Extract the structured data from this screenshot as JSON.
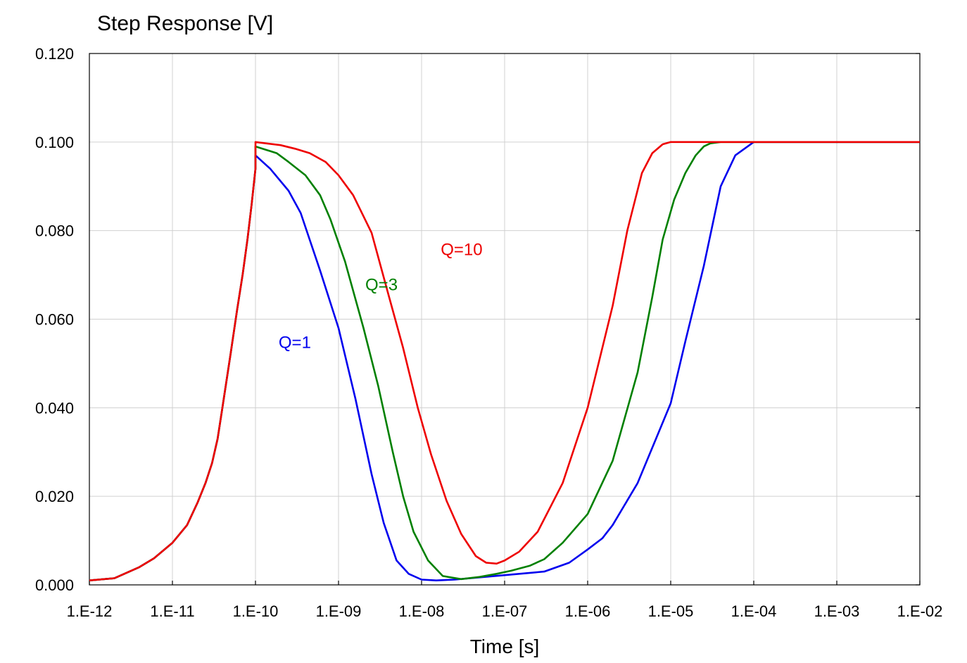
{
  "chart_data": {
    "type": "line",
    "title": "Step Response [V]",
    "xlabel": "Time [s]",
    "ylabel": "",
    "x_scale": "log",
    "xlim": [
      1e-12,
      0.01
    ],
    "ylim": [
      0,
      0.12
    ],
    "grid": true,
    "x_ticks": [
      1e-12,
      1e-11,
      1e-10,
      1e-09,
      1e-08,
      1e-07,
      1e-06,
      1e-05,
      0.0001,
      0.001,
      0.01
    ],
    "x_tick_labels": [
      "1.E-12",
      "1.E-11",
      "1.E-10",
      "1.E-09",
      "1.E-08",
      "1.E-07",
      "1.E-06",
      "1.E-05",
      "1.E-04",
      "1.E-03",
      "1.E-02"
    ],
    "y_ticks": [
      0,
      0.02,
      0.04,
      0.06,
      0.08,
      0.1,
      0.12
    ],
    "y_tick_labels": [
      "0.000",
      "0.020",
      "0.040",
      "0.060",
      "0.080",
      "0.100",
      "0.120"
    ],
    "rise": {
      "x": [
        1e-12,
        2e-12,
        4e-12,
        6e-12,
        1e-11,
        1.5e-11,
        2e-11,
        2.5e-11,
        3e-11,
        3.5e-11,
        4e-11,
        5e-11,
        6e-11,
        7e-11,
        8e-11,
        9e-11,
        1e-10
      ],
      "values": [
        0.001,
        0.0015,
        0.004,
        0.006,
        0.0095,
        0.0135,
        0.0185,
        0.023,
        0.0275,
        0.033,
        0.04,
        0.052,
        0.062,
        0.07,
        0.078,
        0.086,
        0.094
      ]
    },
    "series": [
      {
        "name": "Q=1",
        "color": "#0000ee",
        "x": [
          1e-10,
          1.5e-10,
          2.5e-10,
          3.5e-10,
          6e-10,
          1e-09,
          1.6e-09,
          2.5e-09,
          3.5e-09,
          5e-09,
          7e-09,
          1e-08,
          1.5e-08,
          2.5e-08,
          5e-08,
          1e-07,
          3e-07,
          6e-07,
          1e-06,
          1.5e-06,
          2e-06,
          4e-06,
          7e-06,
          1e-05,
          1.5e-05,
          2.5e-05,
          4e-05,
          6e-05,
          0.0001,
          0.001,
          0.01
        ],
        "values": [
          0.097,
          0.094,
          0.089,
          0.084,
          0.071,
          0.058,
          0.042,
          0.025,
          0.014,
          0.0055,
          0.0025,
          0.0012,
          0.001,
          0.0012,
          0.0017,
          0.0022,
          0.003,
          0.005,
          0.008,
          0.0105,
          0.0135,
          0.023,
          0.034,
          0.041,
          0.055,
          0.072,
          0.09,
          0.097,
          0.1,
          0.1,
          0.1
        ]
      },
      {
        "name": "Q=3",
        "color": "#008000",
        "x": [
          1e-10,
          1.8e-10,
          2.5e-10,
          4e-10,
          6e-10,
          8e-10,
          1.2e-09,
          2e-09,
          3e-09,
          4.5e-09,
          6e-09,
          8e-09,
          1.2e-08,
          1.8e-08,
          3e-08,
          5e-08,
          8e-08,
          1.2e-07,
          2e-07,
          3e-07,
          5e-07,
          1e-06,
          2e-06,
          4e-06,
          6e-06,
          8e-06,
          1.1e-05,
          1.5e-05,
          2e-05,
          2.5e-05,
          3e-05,
          4e-05,
          0.0001,
          0.01
        ],
        "values": [
          0.099,
          0.0975,
          0.0955,
          0.0925,
          0.088,
          0.0825,
          0.073,
          0.058,
          0.045,
          0.03,
          0.02,
          0.012,
          0.0055,
          0.002,
          0.0013,
          0.0018,
          0.0025,
          0.0032,
          0.0043,
          0.0058,
          0.0095,
          0.016,
          0.028,
          0.048,
          0.065,
          0.078,
          0.087,
          0.093,
          0.097,
          0.099,
          0.0997,
          0.1,
          0.1,
          0.1
        ]
      },
      {
        "name": "Q=10",
        "color": "#ee0000",
        "x": [
          1e-10,
          2e-10,
          3e-10,
          4.5e-10,
          7e-10,
          1e-09,
          1.5e-09,
          2.5e-09,
          4e-09,
          6e-09,
          9e-09,
          1.3e-08,
          2e-08,
          3e-08,
          4.5e-08,
          6e-08,
          8e-08,
          1e-07,
          1.5e-07,
          2.5e-07,
          5e-07,
          1e-06,
          2e-06,
          3e-06,
          4.5e-06,
          6e-06,
          8e-06,
          1e-05,
          1.5e-05,
          0.0001,
          0.01
        ],
        "values": [
          0.1,
          0.0993,
          0.0985,
          0.0975,
          0.0955,
          0.0925,
          0.088,
          0.0795,
          0.0655,
          0.0535,
          0.04,
          0.0295,
          0.019,
          0.0115,
          0.0065,
          0.005,
          0.0048,
          0.0055,
          0.0075,
          0.012,
          0.023,
          0.04,
          0.063,
          0.08,
          0.093,
          0.0975,
          0.0995,
          0.1,
          0.1,
          0.1,
          0.1
        ]
      }
    ],
    "annotations": [
      {
        "text": "Q=1",
        "x": 1.9e-10,
        "y": 0.0535,
        "color": "#0000ee"
      },
      {
        "text": "Q=3",
        "x": 2.1e-09,
        "y": 0.0665,
        "color": "#008000"
      },
      {
        "text": "Q=10",
        "x": 1.7e-08,
        "y": 0.0745,
        "color": "#ee0000"
      }
    ]
  }
}
